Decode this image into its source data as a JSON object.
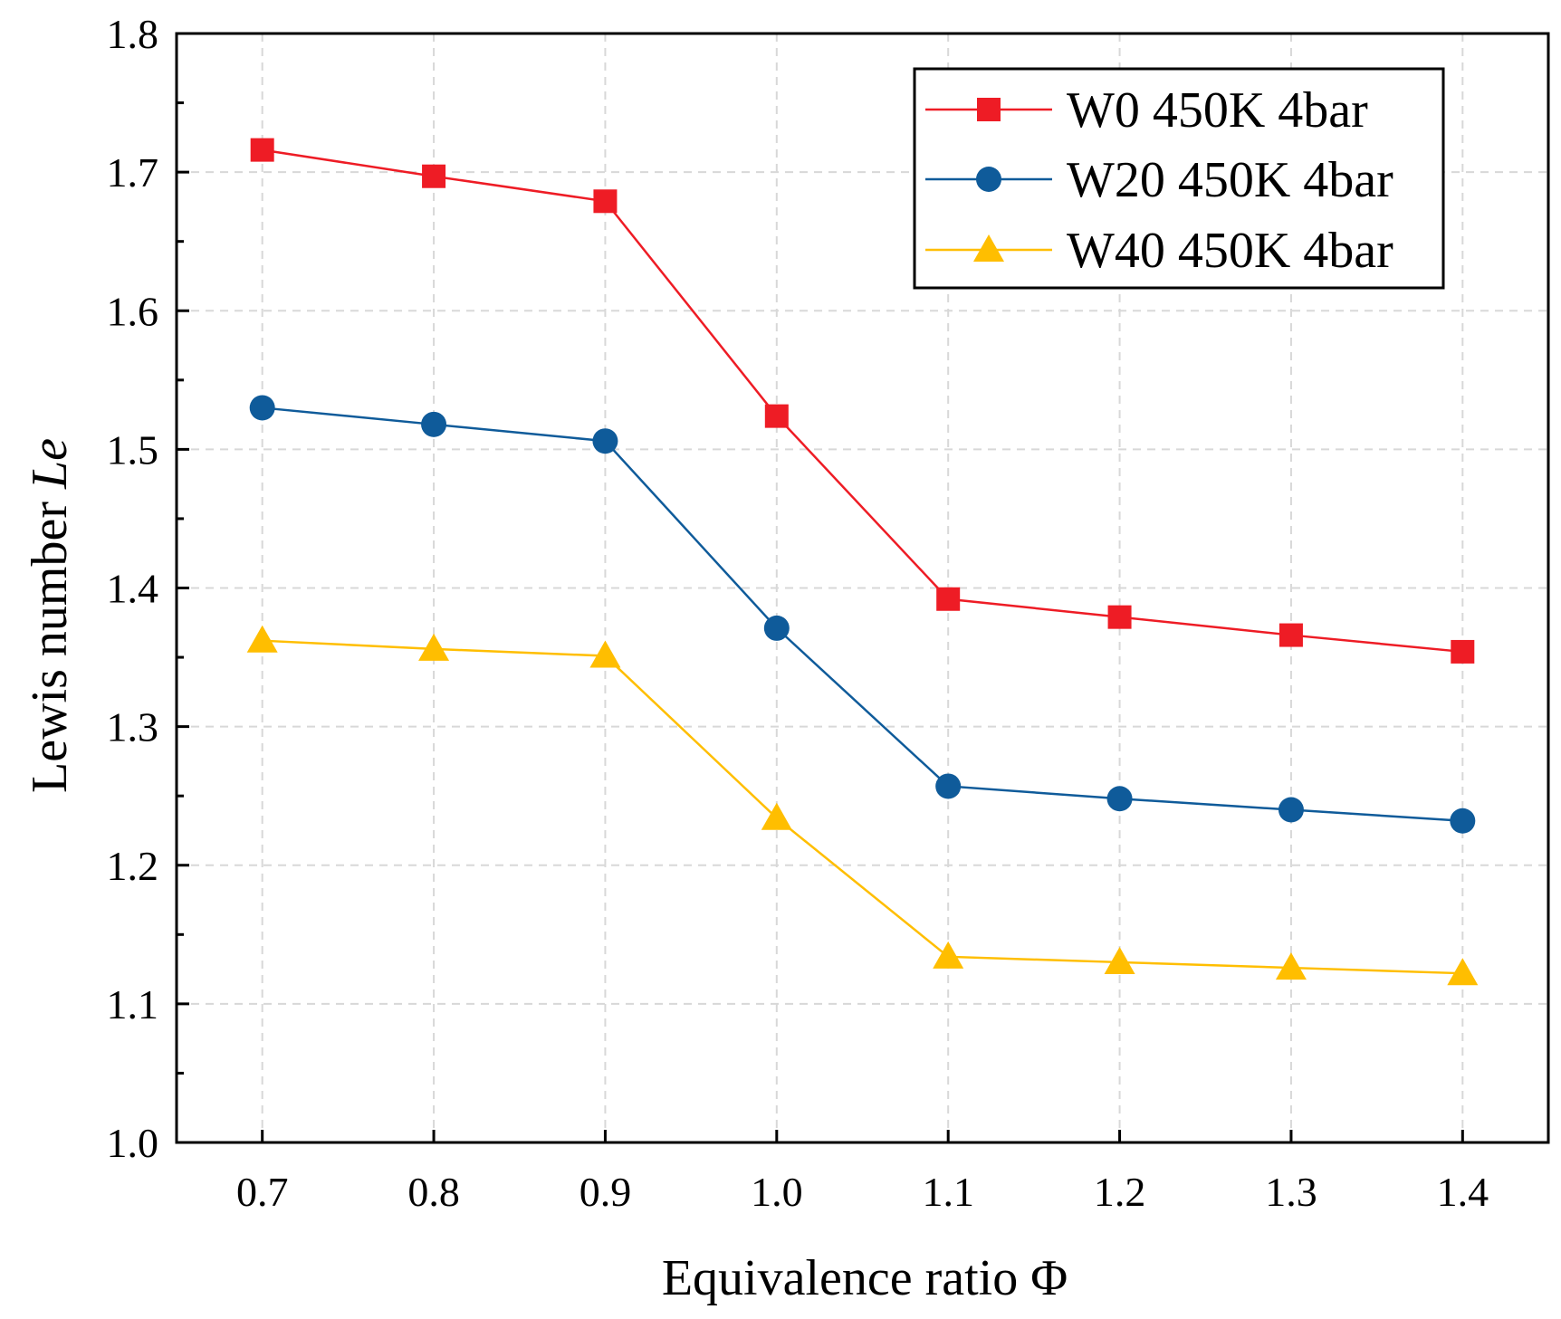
{
  "chart_data": {
    "type": "line",
    "xlabel": "Equivalence ratio Φ",
    "ylabel_plain": "Lewis number ",
    "ylabel_italic": "Le",
    "x": [
      0.7,
      0.8,
      0.9,
      1.0,
      1.1,
      1.2,
      1.3,
      1.4
    ],
    "x_tick_labels": [
      "0.7",
      "0.8",
      "0.9",
      "1.0",
      "1.1",
      "1.2",
      "1.3",
      "1.4"
    ],
    "y_tick_values": [
      1.0,
      1.1,
      1.2,
      1.3,
      1.4,
      1.5,
      1.6,
      1.7,
      1.8
    ],
    "y_tick_labels": [
      "1.0",
      "1.1",
      "1.2",
      "1.3",
      "1.4",
      "1.5",
      "1.6",
      "1.7",
      "1.8"
    ],
    "xlim": [
      0.65,
      1.45
    ],
    "ylim": [
      1.0,
      1.8
    ],
    "grid": true,
    "legend_position": "top-right",
    "series": [
      {
        "name": "W0 450K 4bar",
        "marker": "square",
        "color": "#ee1c25",
        "values": [
          1.716,
          1.697,
          1.679,
          1.524,
          1.392,
          1.379,
          1.366,
          1.354
        ]
      },
      {
        "name": "W20 450K 4bar",
        "marker": "circle",
        "color": "#0f5b9a",
        "values": [
          1.53,
          1.518,
          1.506,
          1.371,
          1.257,
          1.248,
          1.24,
          1.232
        ]
      },
      {
        "name": "W40 450K 4bar",
        "marker": "triangle",
        "color": "#ffbe00",
        "values": [
          1.362,
          1.356,
          1.351,
          1.234,
          1.134,
          1.13,
          1.126,
          1.122
        ]
      }
    ]
  }
}
